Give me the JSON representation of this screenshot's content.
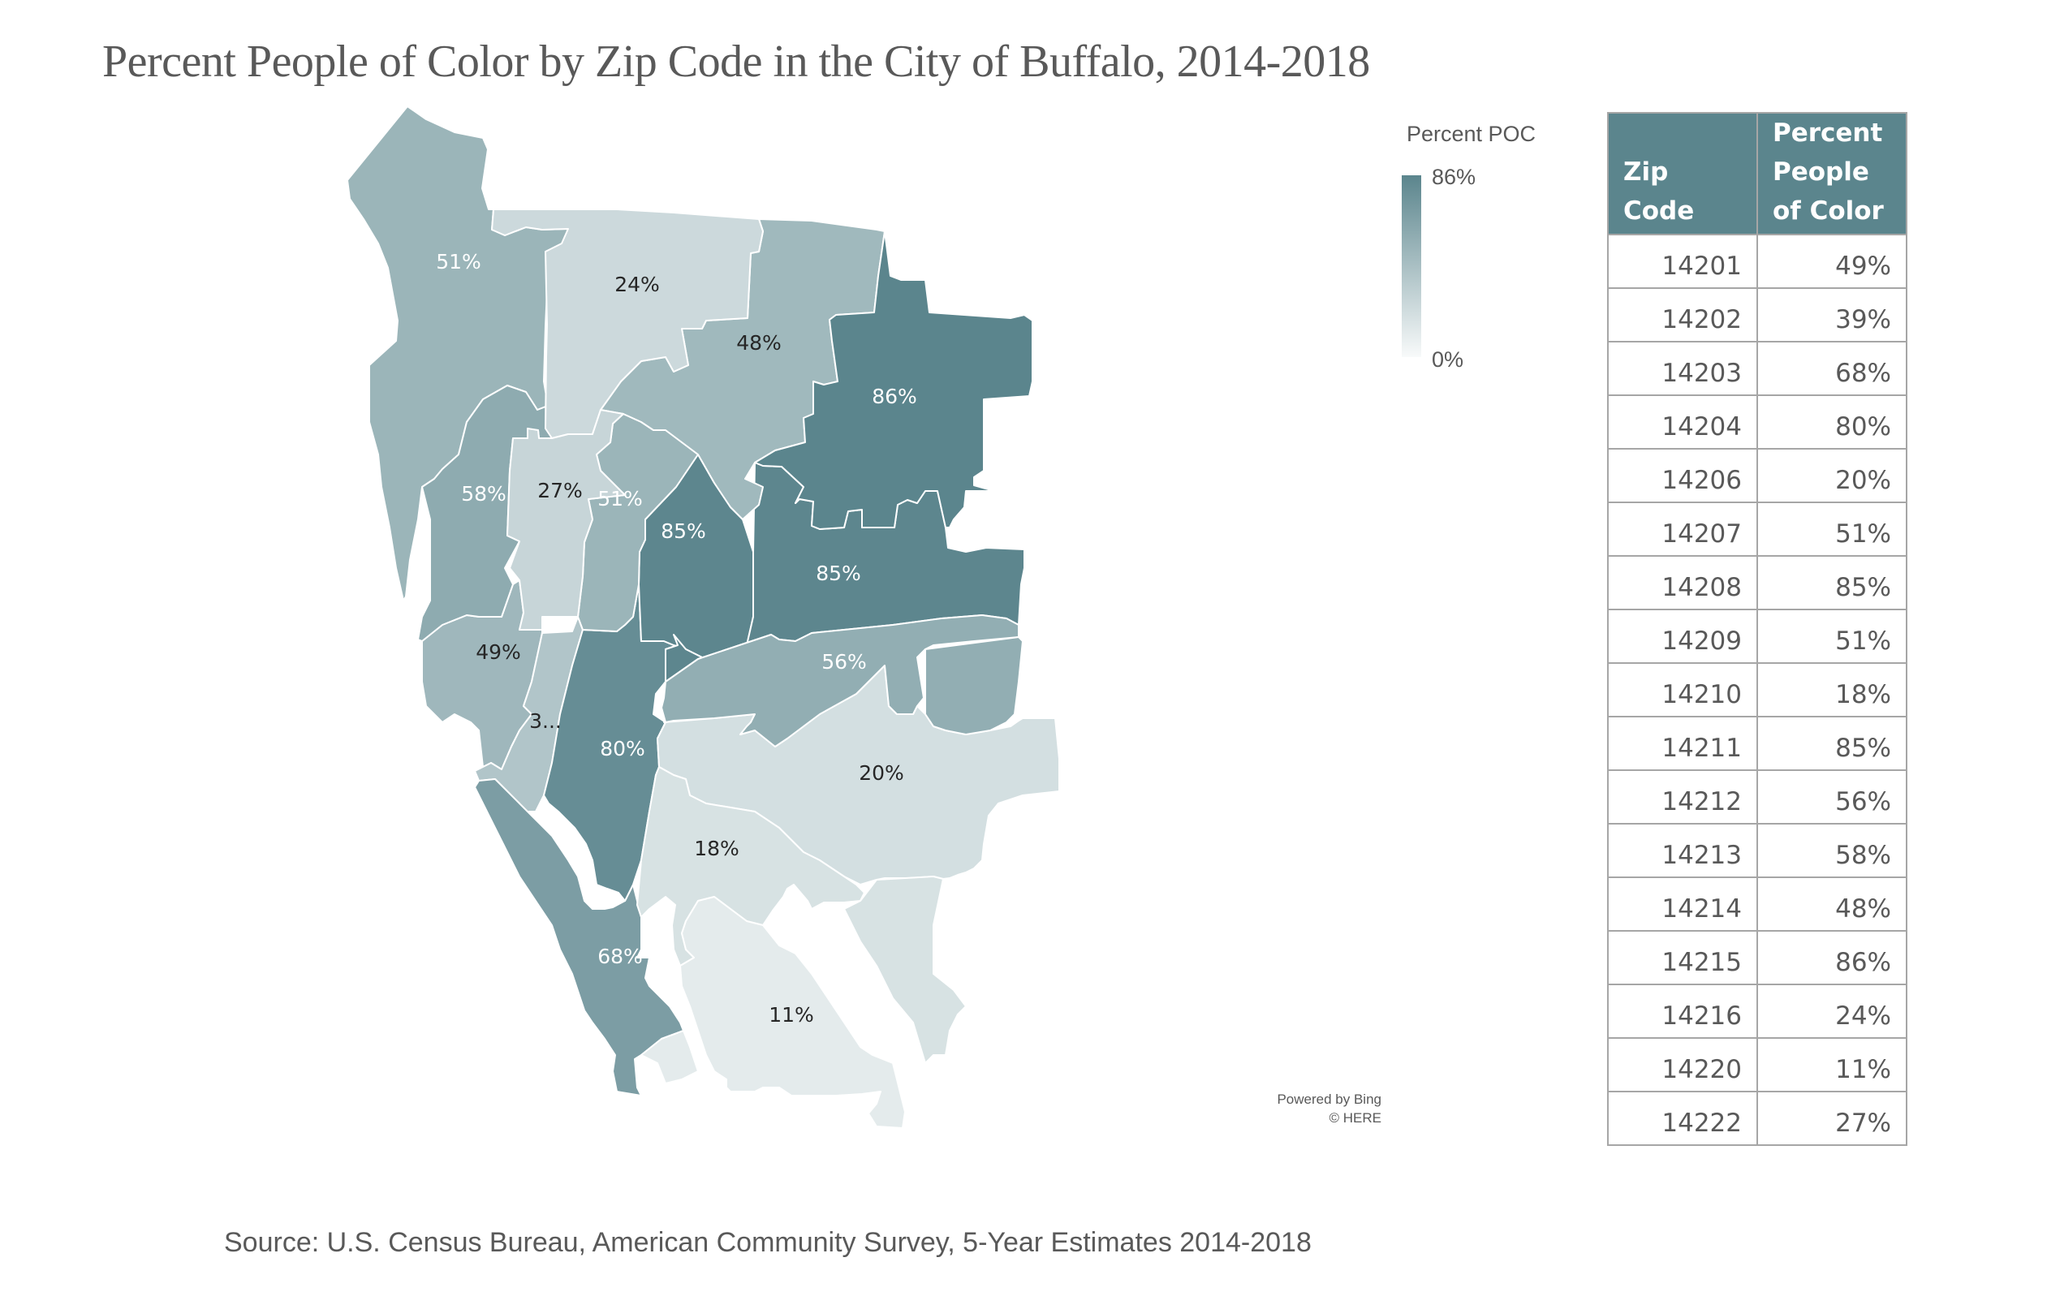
{
  "title": "Percent People of Color by Zip Code in the City of Buffalo, 2014-2018",
  "legend": {
    "title": "Percent POC",
    "max_label": "86%",
    "min_label": "0%",
    "max_value": 86,
    "min_value": 0,
    "color_max": "#5b858d",
    "color_min": "#f8fafa"
  },
  "attribution": {
    "line1": "Powered by Bing",
    "line2": "© HERE"
  },
  "table": {
    "headers": [
      "Zip Code",
      "Percent People of Color"
    ],
    "header_color": "#5b858d",
    "rows": [
      {
        "zip": "14201",
        "pct": "49%"
      },
      {
        "zip": "14202",
        "pct": "39%"
      },
      {
        "zip": "14203",
        "pct": "68%"
      },
      {
        "zip": "14204",
        "pct": "80%"
      },
      {
        "zip": "14206",
        "pct": "20%"
      },
      {
        "zip": "14207",
        "pct": "51%"
      },
      {
        "zip": "14208",
        "pct": "85%"
      },
      {
        "zip": "14209",
        "pct": "51%"
      },
      {
        "zip": "14210",
        "pct": "18%"
      },
      {
        "zip": "14211",
        "pct": "85%"
      },
      {
        "zip": "14212",
        "pct": "56%"
      },
      {
        "zip": "14213",
        "pct": "58%"
      },
      {
        "zip": "14214",
        "pct": "48%"
      },
      {
        "zip": "14215",
        "pct": "86%"
      },
      {
        "zip": "14216",
        "pct": "24%"
      },
      {
        "zip": "14220",
        "pct": "11%"
      },
      {
        "zip": "14222",
        "pct": "27%"
      }
    ]
  },
  "map_labels": [
    {
      "zip": "14207",
      "label": "51%"
    },
    {
      "zip": "14216",
      "label": "24%"
    },
    {
      "zip": "14214",
      "label": "48%"
    },
    {
      "zip": "14215",
      "label": "86%"
    },
    {
      "zip": "14213",
      "label": "58%"
    },
    {
      "zip": "14222",
      "label": "27%"
    },
    {
      "zip": "14209",
      "label": "51%"
    },
    {
      "zip": "14208",
      "label": "85%"
    },
    {
      "zip": "14211",
      "label": "85%"
    },
    {
      "zip": "14201",
      "label": "49%"
    },
    {
      "zip": "14212",
      "label": "56%"
    },
    {
      "zip": "14202",
      "label": "3..."
    },
    {
      "zip": "14204",
      "label": "80%"
    },
    {
      "zip": "14206",
      "label": "20%"
    },
    {
      "zip": "14210",
      "label": "18%"
    },
    {
      "zip": "14203",
      "label": "68%"
    },
    {
      "zip": "14220",
      "label": "11%"
    }
  ],
  "source": "Source: U.S. Census Bureau, American Community Survey, 5-Year Estimates 2014-2018",
  "chart_data": {
    "type": "choropleth",
    "title": "Percent People of Color by Zip Code in the City of Buffalo, 2014-2018",
    "value_label": "Percent POC",
    "range": [
      0,
      86
    ],
    "regions": [
      {
        "zip": "14201",
        "value": 49
      },
      {
        "zip": "14202",
        "value": 39
      },
      {
        "zip": "14203",
        "value": 68
      },
      {
        "zip": "14204",
        "value": 80
      },
      {
        "zip": "14206",
        "value": 20
      },
      {
        "zip": "14207",
        "value": 51
      },
      {
        "zip": "14208",
        "value": 85
      },
      {
        "zip": "14209",
        "value": 51
      },
      {
        "zip": "14210",
        "value": 18
      },
      {
        "zip": "14211",
        "value": 85
      },
      {
        "zip": "14212",
        "value": 56
      },
      {
        "zip": "14213",
        "value": 58
      },
      {
        "zip": "14214",
        "value": 48
      },
      {
        "zip": "14215",
        "value": 86
      },
      {
        "zip": "14216",
        "value": 24
      },
      {
        "zip": "14220",
        "value": 11
      },
      {
        "zip": "14222",
        "value": 27
      }
    ]
  }
}
